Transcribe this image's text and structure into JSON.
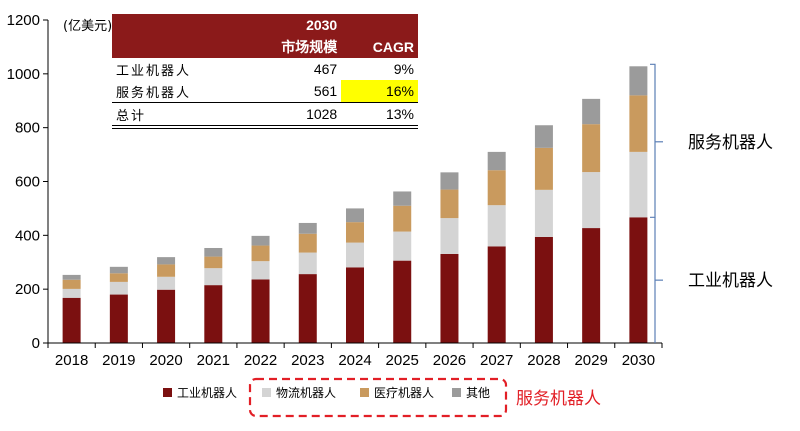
{
  "chart_data": {
    "type": "bar",
    "stacked": true,
    "unit_label": "(亿美元)",
    "categories": [
      "2018",
      "2019",
      "2020",
      "2021",
      "2022",
      "2023",
      "2024",
      "2025",
      "2026",
      "2027",
      "2028",
      "2029",
      "2030"
    ],
    "series": [
      {
        "name": "工业机器人",
        "color": "#7b1010",
        "values": [
          168,
          180,
          198,
          215,
          236,
          256,
          281,
          306,
          331,
          359,
          394,
          427,
          467
        ]
      },
      {
        "name": "物流机器人",
        "color": "#d4d4d4",
        "values": [
          33,
          47,
          48,
          63,
          68,
          80,
          92,
          108,
          133,
          153,
          175,
          208,
          243
        ]
      },
      {
        "name": "医疗机器人",
        "color": "#c99a5e",
        "values": [
          34,
          32,
          46,
          43,
          58,
          70,
          76,
          96,
          106,
          130,
          156,
          178,
          210
        ]
      },
      {
        "name": "其他",
        "color": "#9b9b9b",
        "values": [
          18,
          24,
          27,
          32,
          36,
          40,
          51,
          53,
          64,
          68,
          84,
          94,
          108
        ]
      }
    ],
    "ylim": [
      0,
      1200
    ],
    "yticks": [
      0,
      200,
      400,
      600,
      800,
      1000,
      1200
    ],
    "grid": false,
    "legend_position": "bottom",
    "legend_group_label": "服务机器人",
    "brace_labels": {
      "upper": "服务机器人",
      "lower": "工业机器人"
    },
    "table": {
      "header": {
        "col1": "",
        "year": "2030",
        "market": "市场规模",
        "cagr": "CAGR"
      },
      "rows": [
        {
          "name": "工业机器人",
          "value": "467",
          "cagr": "9%"
        },
        {
          "name": "服务机器人",
          "value": "561",
          "cagr": "16%",
          "highlight": true
        },
        {
          "name": "总计",
          "value": "1028",
          "cagr": "13%"
        }
      ]
    }
  }
}
